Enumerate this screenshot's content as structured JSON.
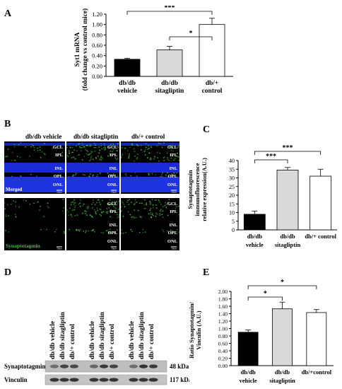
{
  "panels": {
    "A": {
      "letter": "A",
      "chart_data": {
        "type": "bar",
        "ylabel_line1": "Syt1 mRNA",
        "ylabel_line2": "(fold change vs control mice)",
        "ylim": [
          0,
          1.2
        ],
        "yticks": [
          "0.00",
          "0.20",
          "0.40",
          "0.60",
          "0.80",
          "1.00",
          "1.20"
        ],
        "categories": [
          [
            "db/db",
            "vehicle"
          ],
          [
            "db/db",
            "sitagliptin"
          ],
          [
            "db/+",
            "control"
          ]
        ],
        "values": [
          0.33,
          0.51,
          1.0
        ],
        "errors": [
          0.02,
          0.07,
          0.12
        ],
        "colors": [
          "#000000",
          "#d9d9d9",
          "#ffffff"
        ],
        "significance": [
          {
            "from": 1,
            "to": 2,
            "label": "*"
          },
          {
            "from": 0,
            "to": 2,
            "label": "***"
          }
        ]
      }
    },
    "B": {
      "letter": "B",
      "columns": [
        "db/db vehicle",
        "db/db sitagliptin",
        "db/+ control"
      ],
      "merged_label": "Merged",
      "synaptotagmin_label": "Synaptotagmin",
      "layers_top": [
        "GCL",
        "IPL",
        "INL",
        "OPL",
        "ONL"
      ],
      "layers_bottom": [
        "GCL",
        "IPL",
        "INL",
        "OPL",
        "ONL"
      ],
      "scale_bar": "50µm"
    },
    "C": {
      "letter": "C",
      "chart_data": {
        "type": "bar",
        "ylabel_line1": "Synaptotagmin",
        "ylabel_line2": "immunofluorescence",
        "ylabel_line3": "relative expression(A.U.)",
        "ylim": [
          0,
          40
        ],
        "yticks": [
          "0",
          "5",
          "10",
          "15",
          "20",
          "25",
          "30",
          "35",
          "40"
        ],
        "categories": [
          [
            "db/db",
            "vehicle"
          ],
          [
            "db/db",
            "sitagliptin"
          ],
          [
            "db/+ control",
            ""
          ]
        ],
        "values": [
          9,
          34.5,
          31
        ],
        "errors": [
          1.8,
          1.5,
          4
        ],
        "colors": [
          "#000000",
          "#d9d9d9",
          "#ffffff"
        ],
        "significance": [
          {
            "from": 0,
            "to": 1,
            "label": "***"
          },
          {
            "from": 0,
            "to": 2,
            "label": "***"
          }
        ]
      }
    },
    "D": {
      "letter": "D",
      "lanes": [
        "db/db vehicle",
        "db/db sitagliptin",
        "db/+ control",
        "db/db vehicle",
        "db/db sitagliptin",
        "db/+ control",
        "db/db vehicle",
        "db/db sitagliptin",
        "db/+ control"
      ],
      "rows": [
        {
          "label": "Synaptotagmin",
          "size": "48 kDa"
        },
        {
          "label": "Vinculin",
          "size": "117 kDa"
        }
      ]
    },
    "E": {
      "letter": "E",
      "chart_data": {
        "type": "bar",
        "ylabel_line1": "Ratio Synaptotagmin/",
        "ylabel_line2": "Vinculin (A.U.)",
        "ylim": [
          0,
          2.0
        ],
        "yticks": [
          "0.00",
          "0.20",
          "0.40",
          "0.60",
          "0.80",
          "1.00",
          "1.20",
          "1.40",
          "1.60",
          "1.80",
          "2.00"
        ],
        "categories": [
          [
            "db/db",
            "vehicle"
          ],
          [
            "db/db",
            "sitagliptin"
          ],
          [
            "db/+control",
            ""
          ]
        ],
        "values": [
          0.9,
          1.53,
          1.43
        ],
        "errors": [
          0.06,
          0.18,
          0.08
        ],
        "colors": [
          "#000000",
          "#d9d9d9",
          "#ffffff"
        ],
        "significance": [
          {
            "from": 0,
            "to": 1,
            "label": "*"
          },
          {
            "from": 0,
            "to": 2,
            "label": "*"
          }
        ]
      }
    }
  }
}
